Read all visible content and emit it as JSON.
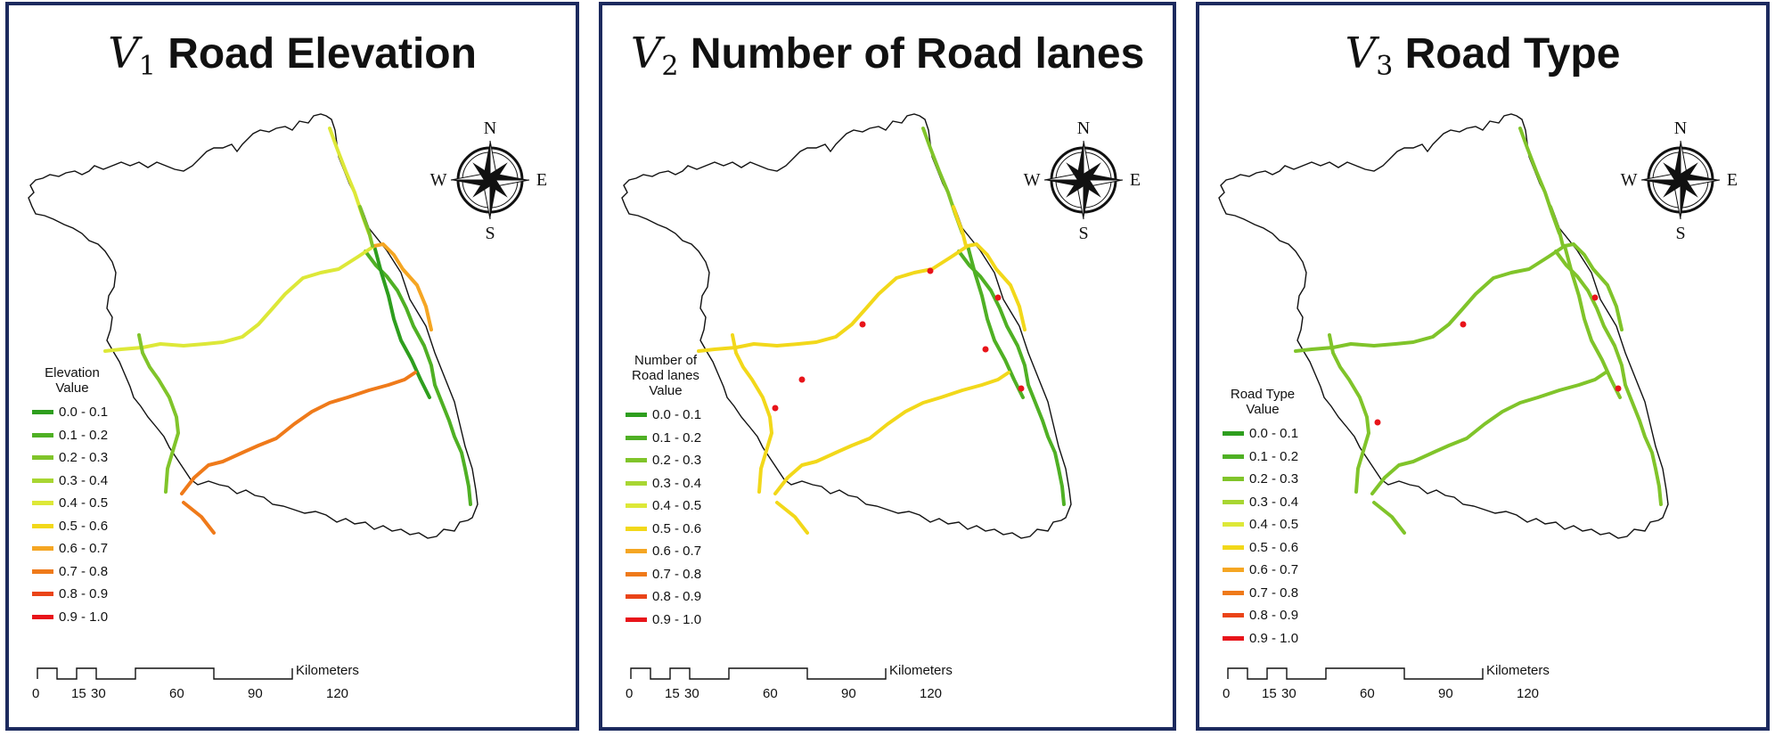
{
  "panels": [
    {
      "title_var": "V",
      "title_sub": "1",
      "title_text": "Road Elevation",
      "legend_title": "Elevation Value"
    },
    {
      "title_var": "V",
      "title_sub": "2",
      "title_text": "Number of Road lanes",
      "legend_title": "Number of Road lanes Value"
    },
    {
      "title_var": "V",
      "title_sub": "3",
      "title_text": "Road Type",
      "legend_title": "Road Type Value"
    }
  ],
  "legend_items": [
    {
      "label": "0.0 - 0.1",
      "color": "#2e9e1e"
    },
    {
      "label": "0.1 - 0.2",
      "color": "#4fb024"
    },
    {
      "label": "0.2 - 0.3",
      "color": "#80c42a"
    },
    {
      "label": "0.3 - 0.4",
      "color": "#a8d632"
    },
    {
      "label": "0.4 - 0.5",
      "color": "#dde838"
    },
    {
      "label": "0.5 - 0.6",
      "color": "#f2d81a"
    },
    {
      "label": "0.6 - 0.7",
      "color": "#f5a623"
    },
    {
      "label": "0.7 - 0.8",
      "color": "#ef7a1a"
    },
    {
      "label": "0.8 - 0.9",
      "color": "#ea4418"
    },
    {
      "label": "0.9 - 1.0",
      "color": "#e8141a"
    }
  ],
  "compass": {
    "n": "N",
    "s": "S",
    "e": "E",
    "w": "W"
  },
  "scale": {
    "unit": "Kilometers",
    "ticks": [
      "0",
      "15",
      "30",
      "60",
      "90",
      "120"
    ]
  }
}
